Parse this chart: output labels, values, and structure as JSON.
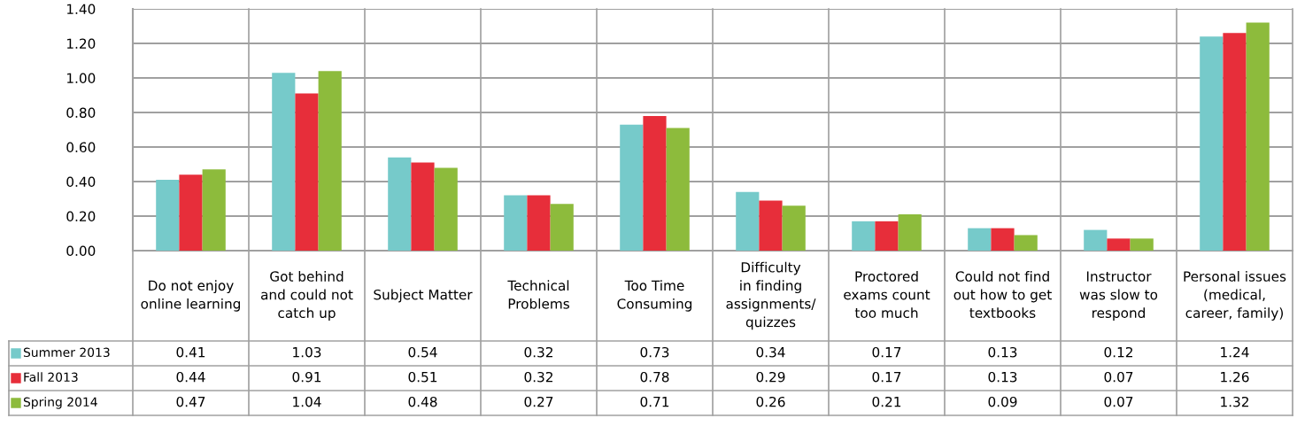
{
  "chart_data": {
    "type": "bar",
    "categories": [
      "Do not enjoy\nonline learning",
      "Got behind\nand could not\ncatch up",
      "Subject Matter",
      "Technical\nProblems",
      "Too Time\nConsuming",
      "Difficulty\nin finding\nassignments/\nquizzes",
      "Proctored\nexams count\ntoo much",
      "Could not find\nout how to get\ntextbooks",
      "Instructor\nwas slow to\nrespond",
      "Personal issues\n(medical,\ncareer, family)"
    ],
    "series": [
      {
        "name": "Summer 2013",
        "color": "#76caca",
        "values": [
          0.41,
          1.03,
          0.54,
          0.32,
          0.73,
          0.34,
          0.17,
          0.13,
          0.12,
          1.24
        ]
      },
      {
        "name": "Fall 2013",
        "color": "#e72e3a",
        "values": [
          0.44,
          0.91,
          0.51,
          0.32,
          0.78,
          0.29,
          0.17,
          0.13,
          0.07,
          1.26
        ]
      },
      {
        "name": "Spring 2014",
        "color": "#8dbb3c",
        "values": [
          0.47,
          1.04,
          0.48,
          0.27,
          0.71,
          0.26,
          0.21,
          0.09,
          0.07,
          1.32
        ]
      }
    ],
    "ylim": [
      0,
      1.4
    ],
    "yticks": [
      {
        "value": 0,
        "label": "0.00"
      },
      {
        "value": 0.2,
        "label": "0.20"
      },
      {
        "value": 0.4,
        "label": "0.40"
      },
      {
        "value": 0.6,
        "label": "0.60"
      },
      {
        "value": 0.8,
        "label": "0.80"
      },
      {
        "value": 1.0,
        "label": "1.00"
      },
      {
        "value": 1.2,
        "label": "1.20"
      },
      {
        "value": 1.4,
        "label": "1.40"
      }
    ],
    "grid": "y",
    "legend": "bottom left",
    "data_labels": true
  }
}
